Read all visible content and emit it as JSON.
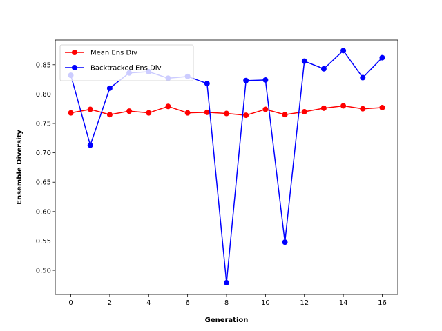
{
  "chart_data": {
    "type": "line",
    "title": "",
    "xlabel": "Generation",
    "ylabel": "Ensemble Diversity",
    "xlim": [
      -0.8,
      16.8
    ],
    "ylim": [
      0.459,
      0.892
    ],
    "x_ticks": [
      0,
      2,
      4,
      6,
      8,
      10,
      12,
      14,
      16
    ],
    "y_ticks": [
      0.5,
      0.55,
      0.6,
      0.65,
      0.7,
      0.75,
      0.8,
      0.85
    ],
    "grid": false,
    "legend_position": "upper-left",
    "x": [
      0,
      1,
      2,
      3,
      4,
      5,
      6,
      7,
      8,
      9,
      10,
      11,
      12,
      13,
      14,
      15,
      16
    ],
    "series": [
      {
        "name": "Mean Ens Div",
        "color": "#ff0000",
        "values": [
          0.768,
          0.774,
          0.765,
          0.771,
          0.768,
          0.779,
          0.768,
          0.769,
          0.767,
          0.764,
          0.774,
          0.765,
          0.77,
          0.776,
          0.78,
          0.775,
          0.777
        ]
      },
      {
        "name": "Backtracked Ens Div",
        "color": "#0000ff",
        "values": [
          0.832,
          0.713,
          0.81,
          0.836,
          0.838,
          0.827,
          0.83,
          0.818,
          0.479,
          0.823,
          0.824,
          0.548,
          0.856,
          0.843,
          0.874,
          0.828,
          0.862
        ]
      }
    ]
  }
}
